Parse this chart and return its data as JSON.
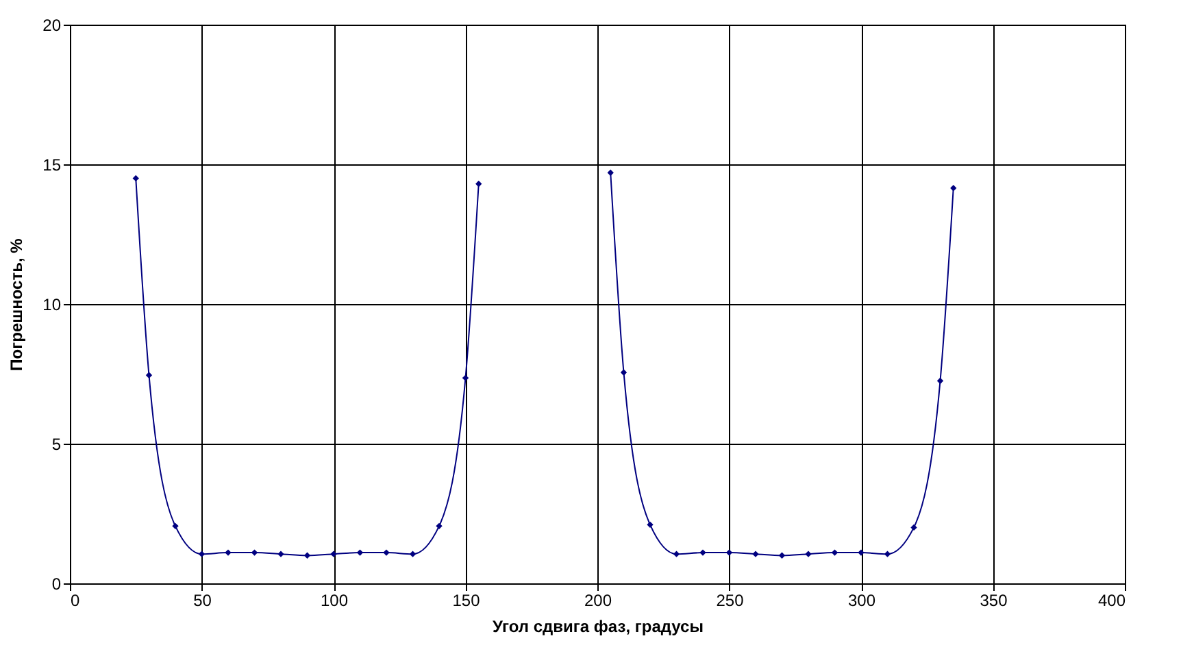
{
  "chart_data": {
    "type": "line",
    "xlabel": "Угол сдвига фаз, градусы",
    "ylabel": "Погрешность, %",
    "series": [
      {
        "color": "#000080",
        "x": [
          25,
          30,
          40,
          50,
          60,
          70,
          80,
          90,
          100,
          110,
          120,
          130,
          140,
          150,
          155
        ],
        "values": [
          14.5,
          7.45,
          2.05,
          1.05,
          1.1,
          1.1,
          1.05,
          1.0,
          1.05,
          1.1,
          1.1,
          1.05,
          2.05,
          7.35,
          14.3
        ]
      },
      {
        "color": "#000080",
        "x": [
          205,
          210,
          220,
          230,
          240,
          250,
          260,
          270,
          280,
          290,
          300,
          310,
          320,
          330,
          335
        ],
        "values": [
          14.7,
          7.55,
          2.1,
          1.05,
          1.1,
          1.1,
          1.05,
          1.0,
          1.05,
          1.1,
          1.1,
          1.05,
          2.0,
          7.25,
          14.15
        ]
      }
    ],
    "xlim": [
      0,
      400
    ],
    "xticks": [
      0,
      50,
      100,
      150,
      200,
      250,
      300,
      350,
      400
    ],
    "ylim": [
      0,
      20
    ],
    "yticks": [
      0,
      5,
      10,
      15,
      20
    ],
    "grid": true,
    "marker": "diamond",
    "line_style": "solid"
  }
}
